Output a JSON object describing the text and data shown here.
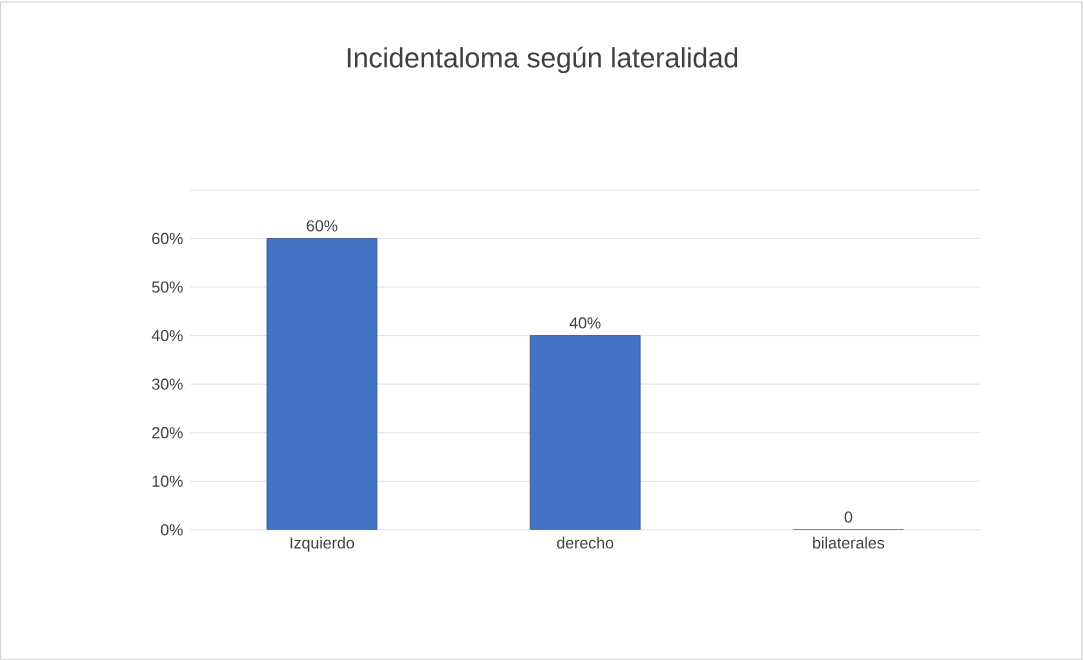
{
  "chart_data": {
    "type": "bar",
    "title": "Incidentaloma según lateralidad",
    "categories": [
      "Izquierdo",
      "derecho",
      "bilaterales"
    ],
    "values": [
      60,
      40,
      0
    ],
    "value_labels": [
      "60%",
      "40%",
      "0"
    ],
    "color": "#4472c4",
    "ylim": [
      0,
      70
    ],
    "yticks": [
      {
        "value": 0,
        "label": "0%"
      },
      {
        "value": 10,
        "label": "10%"
      },
      {
        "value": 20,
        "label": "20%"
      },
      {
        "value": 30,
        "label": "30%"
      },
      {
        "value": 40,
        "label": "40%"
      },
      {
        "value": 50,
        "label": "50%"
      },
      {
        "value": 60,
        "label": "60%"
      },
      {
        "value": 70,
        "label": null
      }
    ],
    "grid": "y"
  }
}
